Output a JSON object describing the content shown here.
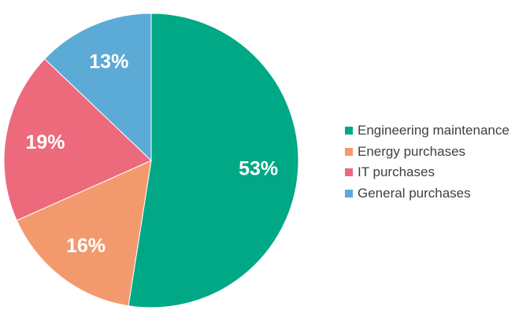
{
  "chart_data": {
    "type": "pie",
    "title": "",
    "start_angle_deg": 0,
    "direction": "clockwise",
    "slices": [
      {
        "name": "Engineering maintenance",
        "value": 53,
        "label": "53%",
        "color": "#00A886"
      },
      {
        "name": "Energy purchases",
        "value": 16,
        "label": "16%",
        "color": "#F29A6E"
      },
      {
        "name": "IT purchases",
        "value": 19,
        "label": "19%",
        "color": "#EC6A7C"
      },
      {
        "name": "General purchases",
        "value": 13,
        "label": "13%",
        "color": "#5BABD6"
      }
    ],
    "legend_position": "right"
  }
}
